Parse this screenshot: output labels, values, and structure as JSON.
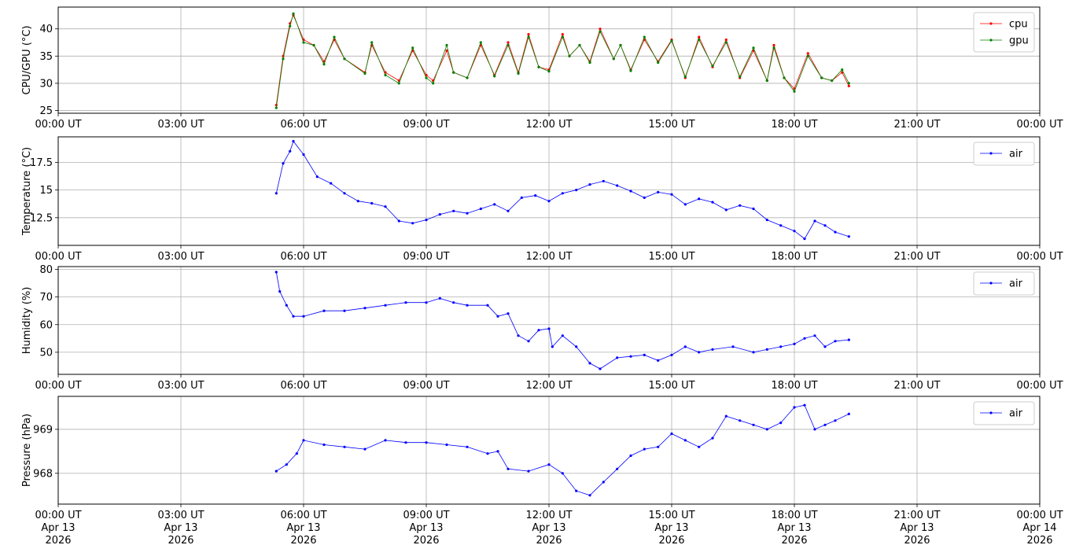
{
  "chart_data": [
    {
      "type": "line",
      "ylabel": "CPU/GPU (°C)",
      "xlim": [
        "00:00",
        "24:00"
      ],
      "ylim": [
        24.5,
        44
      ],
      "yticks": [
        25,
        30,
        35,
        40
      ],
      "grid": true,
      "legend": "top-right",
      "x_tick_labels": [
        "00:00 UT",
        "03:00 UT",
        "06:00 UT",
        "09:00 UT",
        "12:00 UT",
        "15:00 UT",
        "18:00 UT",
        "21:00 UT",
        "00:00 UT"
      ],
      "series": [
        {
          "name": "cpu",
          "color": "#ff0000",
          "x": [
            "05:20",
            "05:30",
            "05:40",
            "05:45",
            "06:00",
            "06:15",
            "06:30",
            "06:45",
            "07:00",
            "07:30",
            "07:40",
            "08:00",
            "08:20",
            "08:40",
            "09:00",
            "09:10",
            "09:30",
            "09:40",
            "10:00",
            "10:20",
            "10:40",
            "11:00",
            "11:15",
            "11:30",
            "11:45",
            "12:00",
            "12:20",
            "12:30",
            "12:45",
            "13:00",
            "13:15",
            "13:35",
            "13:45",
            "14:00",
            "14:20",
            "14:40",
            "15:00",
            "15:20",
            "15:40",
            "16:00",
            "16:20",
            "16:40",
            "17:00",
            "17:20",
            "17:30",
            "17:45",
            "18:00",
            "18:20",
            "18:40",
            "18:55",
            "19:10",
            "19:20"
          ],
          "y": [
            26,
            35,
            41,
            42.5,
            38,
            37,
            34,
            38,
            34.5,
            32,
            37,
            32,
            30.5,
            36,
            31.5,
            30.5,
            36,
            32,
            31,
            37,
            31.5,
            37.5,
            32,
            39,
            33,
            32.5,
            39,
            35,
            37,
            34,
            40,
            34.5,
            37,
            32.5,
            38,
            34,
            38,
            31,
            38.5,
            33,
            38,
            31,
            36,
            30.5,
            37,
            31,
            29,
            35.5,
            31,
            30.5,
            32,
            29.5
          ]
        },
        {
          "name": "gpu",
          "color": "#008000",
          "x": [
            "05:20",
            "05:30",
            "05:40",
            "05:45",
            "06:00",
            "06:15",
            "06:30",
            "06:45",
            "07:00",
            "07:30",
            "07:40",
            "08:00",
            "08:20",
            "08:40",
            "09:00",
            "09:10",
            "09:30",
            "09:40",
            "10:00",
            "10:20",
            "10:40",
            "11:00",
            "11:15",
            "11:30",
            "11:45",
            "12:00",
            "12:20",
            "12:30",
            "12:45",
            "13:00",
            "13:15",
            "13:35",
            "13:45",
            "14:00",
            "14:20",
            "14:40",
            "15:00",
            "15:20",
            "15:40",
            "16:00",
            "16:20",
            "16:40",
            "17:00",
            "17:20",
            "17:30",
            "17:45",
            "18:00",
            "18:20",
            "18:40",
            "18:55",
            "19:10",
            "19:20"
          ],
          "y": [
            25.5,
            34.5,
            40.5,
            42.8,
            37.5,
            37,
            33.5,
            38.5,
            34.5,
            31.8,
            37.5,
            31.5,
            30,
            36.5,
            31,
            30,
            37,
            32,
            31,
            37.5,
            31.3,
            37,
            31.8,
            38.5,
            33,
            32.2,
            38.5,
            35,
            37,
            33.8,
            39.5,
            34.5,
            37,
            32.3,
            38.5,
            33.8,
            37.8,
            31.2,
            38,
            33.2,
            37.5,
            31.2,
            36.5,
            30.5,
            36.5,
            31,
            28.5,
            35,
            31,
            30.5,
            32.5,
            30
          ]
        }
      ]
    },
    {
      "type": "line",
      "ylabel": "Temperature (°C)",
      "xlim": [
        "00:00",
        "24:00"
      ],
      "ylim": [
        10,
        19.8
      ],
      "yticks": [
        12.5,
        15.0,
        17.5
      ],
      "grid": true,
      "legend": "top-right",
      "x_tick_labels": [
        "00:00 UT",
        "03:00 UT",
        "06:00 UT",
        "09:00 UT",
        "12:00 UT",
        "15:00 UT",
        "18:00 UT",
        "21:00 UT",
        "00:00 UT"
      ],
      "series": [
        {
          "name": "air",
          "color": "#0000ff",
          "x": [
            "05:20",
            "05:30",
            "05:40",
            "05:45",
            "06:00",
            "06:20",
            "06:40",
            "07:00",
            "07:20",
            "07:40",
            "08:00",
            "08:20",
            "08:40",
            "09:00",
            "09:20",
            "09:40",
            "10:00",
            "10:20",
            "10:40",
            "11:00",
            "11:20",
            "11:40",
            "12:00",
            "12:20",
            "12:40",
            "13:00",
            "13:20",
            "13:40",
            "14:00",
            "14:20",
            "14:40",
            "15:00",
            "15:20",
            "15:40",
            "16:00",
            "16:20",
            "16:40",
            "17:00",
            "17:20",
            "17:40",
            "18:00",
            "18:15",
            "18:30",
            "18:45",
            "19:00",
            "19:20"
          ],
          "y": [
            14.7,
            17.4,
            18.5,
            19.4,
            18.2,
            16.2,
            15.6,
            14.7,
            14.0,
            13.8,
            13.5,
            12.2,
            12.0,
            12.3,
            12.8,
            13.1,
            12.9,
            13.3,
            13.7,
            13.1,
            14.3,
            14.5,
            14.0,
            14.7,
            15.0,
            15.5,
            15.8,
            15.4,
            14.9,
            14.3,
            14.8,
            14.6,
            13.7,
            14.2,
            13.9,
            13.2,
            13.6,
            13.3,
            12.3,
            11.8,
            11.3,
            10.6,
            12.2,
            11.8,
            11.2,
            10.8
          ]
        }
      ]
    },
    {
      "type": "line",
      "ylabel": "Humidity (%)",
      "xlim": [
        "00:00",
        "24:00"
      ],
      "ylim": [
        42,
        81
      ],
      "yticks": [
        50,
        60,
        70,
        80
      ],
      "grid": true,
      "legend": "top-right",
      "x_tick_labels": [
        "00:00 UT",
        "03:00 UT",
        "06:00 UT",
        "09:00 UT",
        "12:00 UT",
        "15:00 UT",
        "18:00 UT",
        "21:00 UT",
        "00:00 UT"
      ],
      "series": [
        {
          "name": "air",
          "color": "#0000ff",
          "x": [
            "05:20",
            "05:25",
            "05:35",
            "05:45",
            "06:00",
            "06:30",
            "07:00",
            "07:30",
            "08:00",
            "08:30",
            "09:00",
            "09:20",
            "09:40",
            "10:00",
            "10:30",
            "10:45",
            "11:00",
            "11:15",
            "11:30",
            "11:45",
            "12:00",
            "12:05",
            "12:20",
            "12:40",
            "13:00",
            "13:15",
            "13:40",
            "14:00",
            "14:20",
            "14:40",
            "15:00",
            "15:20",
            "15:40",
            "16:00",
            "16:30",
            "17:00",
            "17:20",
            "17:40",
            "18:00",
            "18:15",
            "18:30",
            "18:45",
            "19:00",
            "19:20"
          ],
          "y": [
            79,
            72,
            67,
            63,
            63,
            65,
            65,
            66,
            67,
            68,
            68,
            69.5,
            68,
            67,
            67,
            63,
            64,
            56,
            54,
            58,
            58.5,
            52,
            56,
            52,
            46,
            44,
            48,
            48.5,
            49,
            47,
            49,
            52,
            50,
            51,
            52,
            50,
            51,
            52,
            53,
            55,
            56,
            52,
            54,
            54.5
          ]
        }
      ]
    },
    {
      "type": "line",
      "ylabel": "Pressure (hPa)",
      "xlim": [
        "00:00",
        "24:00"
      ],
      "ylim": [
        967.3,
        969.75
      ],
      "yticks": [
        968,
        969
      ],
      "ytick_labels": [
        "968",
        "969"
      ],
      "grid": true,
      "legend": "top-right",
      "x_tick_labels": [
        "00:00 UT\nApr 13\n2026",
        "03:00 UT\nApr 13\n2026",
        "06:00 UT\nApr 13\n2026",
        "09:00 UT\nApr 13\n2026",
        "12:00 UT\nApr 13\n2026",
        "15:00 UT\nApr 13\n2026",
        "18:00 UT\nApr 13\n2026",
        "21:00 UT\nApr 13\n2026",
        "00:00 UT\nApr 14\n2026"
      ],
      "series": [
        {
          "name": "air",
          "color": "#0000ff",
          "x": [
            "05:20",
            "05:35",
            "05:50",
            "06:00",
            "06:30",
            "07:00",
            "07:30",
            "08:00",
            "08:30",
            "09:00",
            "09:30",
            "10:00",
            "10:30",
            "10:45",
            "11:00",
            "11:30",
            "12:00",
            "12:20",
            "12:40",
            "13:00",
            "13:20",
            "13:40",
            "14:00",
            "14:20",
            "14:40",
            "15:00",
            "15:20",
            "15:40",
            "16:00",
            "16:20",
            "16:40",
            "17:00",
            "17:20",
            "17:40",
            "18:00",
            "18:15",
            "18:30",
            "18:45",
            "19:00",
            "19:20"
          ],
          "y": [
            968.05,
            968.2,
            968.45,
            968.75,
            968.65,
            968.6,
            968.55,
            968.75,
            968.7,
            968.7,
            968.65,
            968.6,
            968.45,
            968.5,
            968.1,
            968.05,
            968.2,
            968.0,
            967.6,
            967.5,
            967.8,
            968.1,
            968.4,
            968.55,
            968.6,
            968.9,
            968.75,
            968.6,
            968.8,
            969.3,
            969.2,
            969.1,
            969.0,
            969.15,
            969.5,
            969.55,
            969.0,
            969.1,
            969.2,
            969.35
          ]
        }
      ]
    }
  ]
}
